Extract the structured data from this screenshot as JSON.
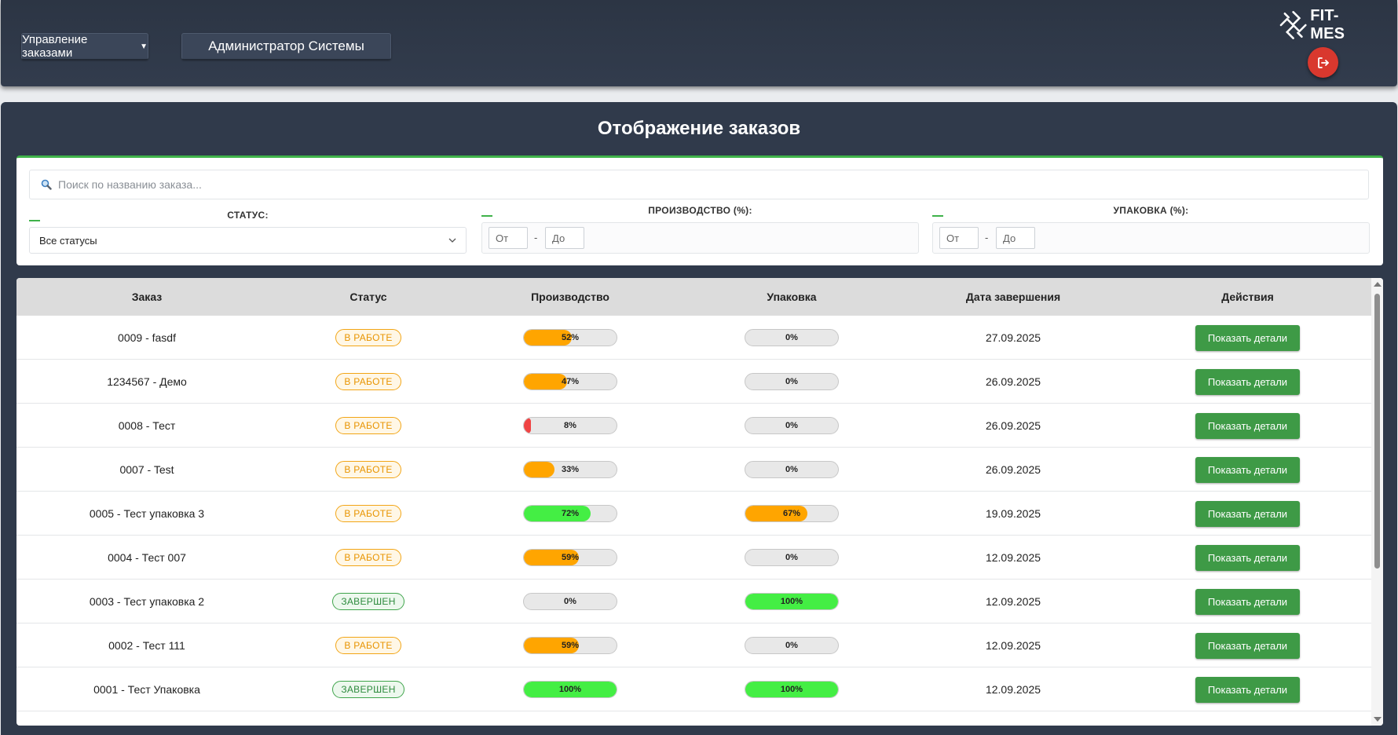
{
  "header": {
    "orders_menu_label": "Управление заказами",
    "admin_label": "Администратор Системы",
    "logo_text": "FIT-MES"
  },
  "page": {
    "title": "Отображение заказов"
  },
  "filters": {
    "search_placeholder": "Поиск по названию заказа...",
    "status_label": "СТАТУС:",
    "status_selected": "Все статусы",
    "production_label": "ПРОИЗВОДСТВО (%):",
    "packing_label": "УПАКОВКА (%):",
    "from_placeholder": "От",
    "to_placeholder": "До",
    "range_separator": "-"
  },
  "table": {
    "headers": [
      "Заказ",
      "Статус",
      "Производство",
      "Упаковка",
      "Дата завершения",
      "Действия"
    ],
    "details_label": "Показать детали",
    "rows": [
      {
        "order": "0009 - fasdf",
        "status": "В РАБОТЕ",
        "production": 52,
        "packing": 0,
        "date": "27.09.2025"
      },
      {
        "order": "1234567 - Демо",
        "status": "В РАБОТЕ",
        "production": 47,
        "packing": 0,
        "date": "26.09.2025"
      },
      {
        "order": "0008 - Тест",
        "status": "В РАБОТЕ",
        "production": 8,
        "packing": 0,
        "date": "26.09.2025"
      },
      {
        "order": "0007 - Test",
        "status": "В РАБОТЕ",
        "production": 33,
        "packing": 0,
        "date": "26.09.2025"
      },
      {
        "order": "0005 - Тест упаковка 3",
        "status": "В РАБОТЕ",
        "production": 72,
        "packing": 67,
        "date": "19.09.2025"
      },
      {
        "order": "0004 - Тест 007",
        "status": "В РАБОТЕ",
        "production": 59,
        "packing": 0,
        "date": "12.09.2025"
      },
      {
        "order": "0003 - Тест упаковка 2",
        "status": "ЗАВЕРШЕН",
        "production": 0,
        "packing": 100,
        "date": "12.09.2025"
      },
      {
        "order": "0002 - Тест 111",
        "status": "В РАБОТЕ",
        "production": 59,
        "packing": 0,
        "date": "12.09.2025"
      },
      {
        "order": "0001 - Тест Упаковка",
        "status": "ЗАВЕРШЕН",
        "production": 100,
        "packing": 100,
        "date": "12.09.2025"
      }
    ]
  },
  "colors": {
    "progress_low": "#f04444",
    "progress_mid": "#ffa500",
    "progress_high": "#44ee44",
    "accent_green": "#3e9a46",
    "logout_red": "#d9382e"
  },
  "icons": {
    "search": "search-icon",
    "logout": "logout-icon",
    "dropdown": "chevron-down-icon",
    "logo": "logo-icon"
  }
}
